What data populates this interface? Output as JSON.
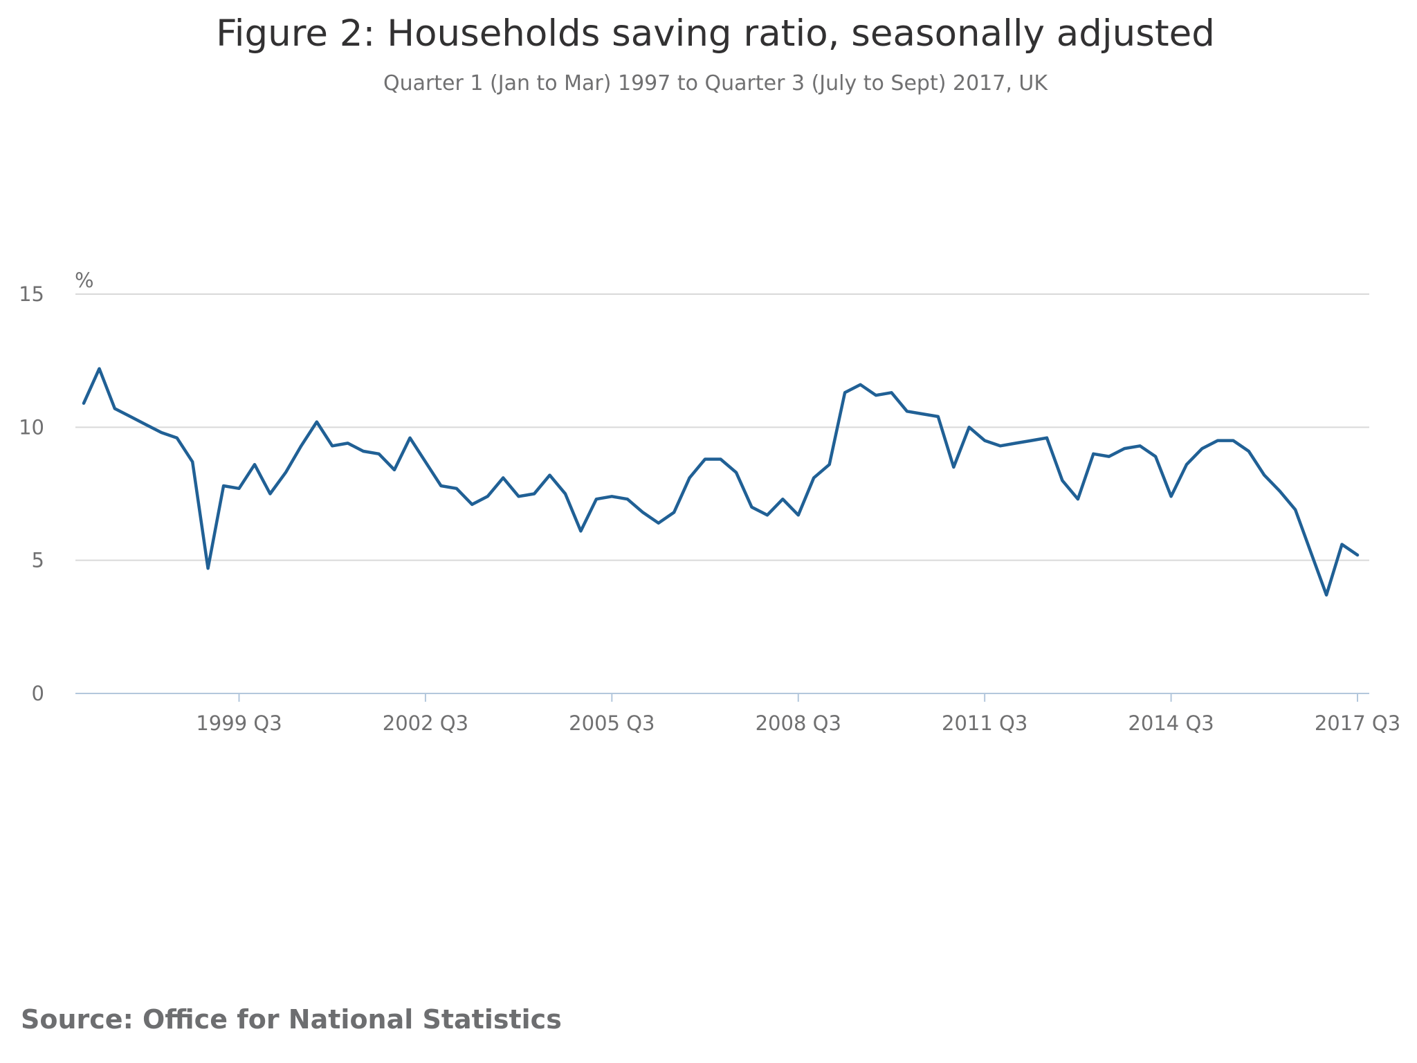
{
  "chart_data": {
    "type": "line",
    "title": "Figure 2: Households saving ratio, seasonally adjusted",
    "subtitle": "Quarter 1 (Jan to Mar) 1997 to Quarter 3 (July to Sept) 2017, UK",
    "y_unit_label": "%",
    "ylim": [
      0,
      15
    ],
    "y_ticks": [
      0,
      5,
      10,
      15
    ],
    "x_tick_labels": [
      "1999 Q3",
      "2002 Q3",
      "2005 Q3",
      "2008 Q3",
      "2011 Q3",
      "2014 Q3",
      "2017 Q3"
    ],
    "grid": true,
    "line_color": "#206095",
    "source": "Source: Office for National Statistics",
    "x": [
      "1997 Q1",
      "1997 Q2",
      "1997 Q3",
      "1997 Q4",
      "1998 Q1",
      "1998 Q2",
      "1998 Q3",
      "1998 Q4",
      "1999 Q1",
      "1999 Q2",
      "1999 Q3",
      "1999 Q4",
      "2000 Q1",
      "2000 Q2",
      "2000 Q3",
      "2000 Q4",
      "2001 Q1",
      "2001 Q2",
      "2001 Q3",
      "2001 Q4",
      "2002 Q1",
      "2002 Q2",
      "2002 Q3",
      "2002 Q4",
      "2003 Q1",
      "2003 Q2",
      "2003 Q3",
      "2003 Q4",
      "2004 Q1",
      "2004 Q2",
      "2004 Q3",
      "2004 Q4",
      "2005 Q1",
      "2005 Q2",
      "2005 Q3",
      "2005 Q4",
      "2006 Q1",
      "2006 Q2",
      "2006 Q3",
      "2006 Q4",
      "2007 Q1",
      "2007 Q2",
      "2007 Q3",
      "2007 Q4",
      "2008 Q1",
      "2008 Q2",
      "2008 Q3",
      "2008 Q4",
      "2009 Q1",
      "2009 Q2",
      "2009 Q3",
      "2009 Q4",
      "2010 Q1",
      "2010 Q2",
      "2010 Q3",
      "2010 Q4",
      "2011 Q1",
      "2011 Q2",
      "2011 Q3",
      "2011 Q4",
      "2012 Q1",
      "2012 Q2",
      "2012 Q3",
      "2012 Q4",
      "2013 Q1",
      "2013 Q2",
      "2013 Q3",
      "2013 Q4",
      "2014 Q1",
      "2014 Q2",
      "2014 Q3",
      "2014 Q4",
      "2015 Q1",
      "2015 Q2",
      "2015 Q3",
      "2015 Q4",
      "2016 Q1",
      "2016 Q2",
      "2016 Q3",
      "2016 Q4",
      "2017 Q1",
      "2017 Q2",
      "2017 Q3"
    ],
    "values": [
      10.9,
      12.2,
      10.7,
      10.4,
      10.1,
      9.8,
      9.6,
      8.7,
      4.7,
      7.8,
      7.7,
      8.6,
      7.5,
      8.3,
      9.3,
      10.2,
      9.3,
      9.4,
      9.1,
      9.0,
      8.4,
      9.6,
      8.7,
      7.8,
      7.7,
      7.1,
      7.4,
      8.1,
      7.4,
      7.5,
      8.2,
      7.5,
      6.1,
      7.3,
      7.4,
      7.3,
      6.8,
      6.4,
      6.8,
      8.1,
      8.8,
      8.8,
      8.3,
      7.0,
      6.7,
      7.3,
      6.7,
      8.1,
      8.6,
      11.3,
      11.6,
      11.2,
      11.3,
      10.6,
      10.5,
      10.4,
      8.5,
      10.0,
      9.5,
      9.3,
      9.4,
      9.5,
      9.6,
      8.0,
      7.3,
      9.0,
      8.9,
      9.2,
      9.3,
      8.9,
      7.4,
      8.6,
      9.2,
      9.5,
      9.5,
      9.1,
      8.2,
      7.6,
      6.9,
      5.3,
      3.7,
      5.6,
      5.2
    ]
  }
}
